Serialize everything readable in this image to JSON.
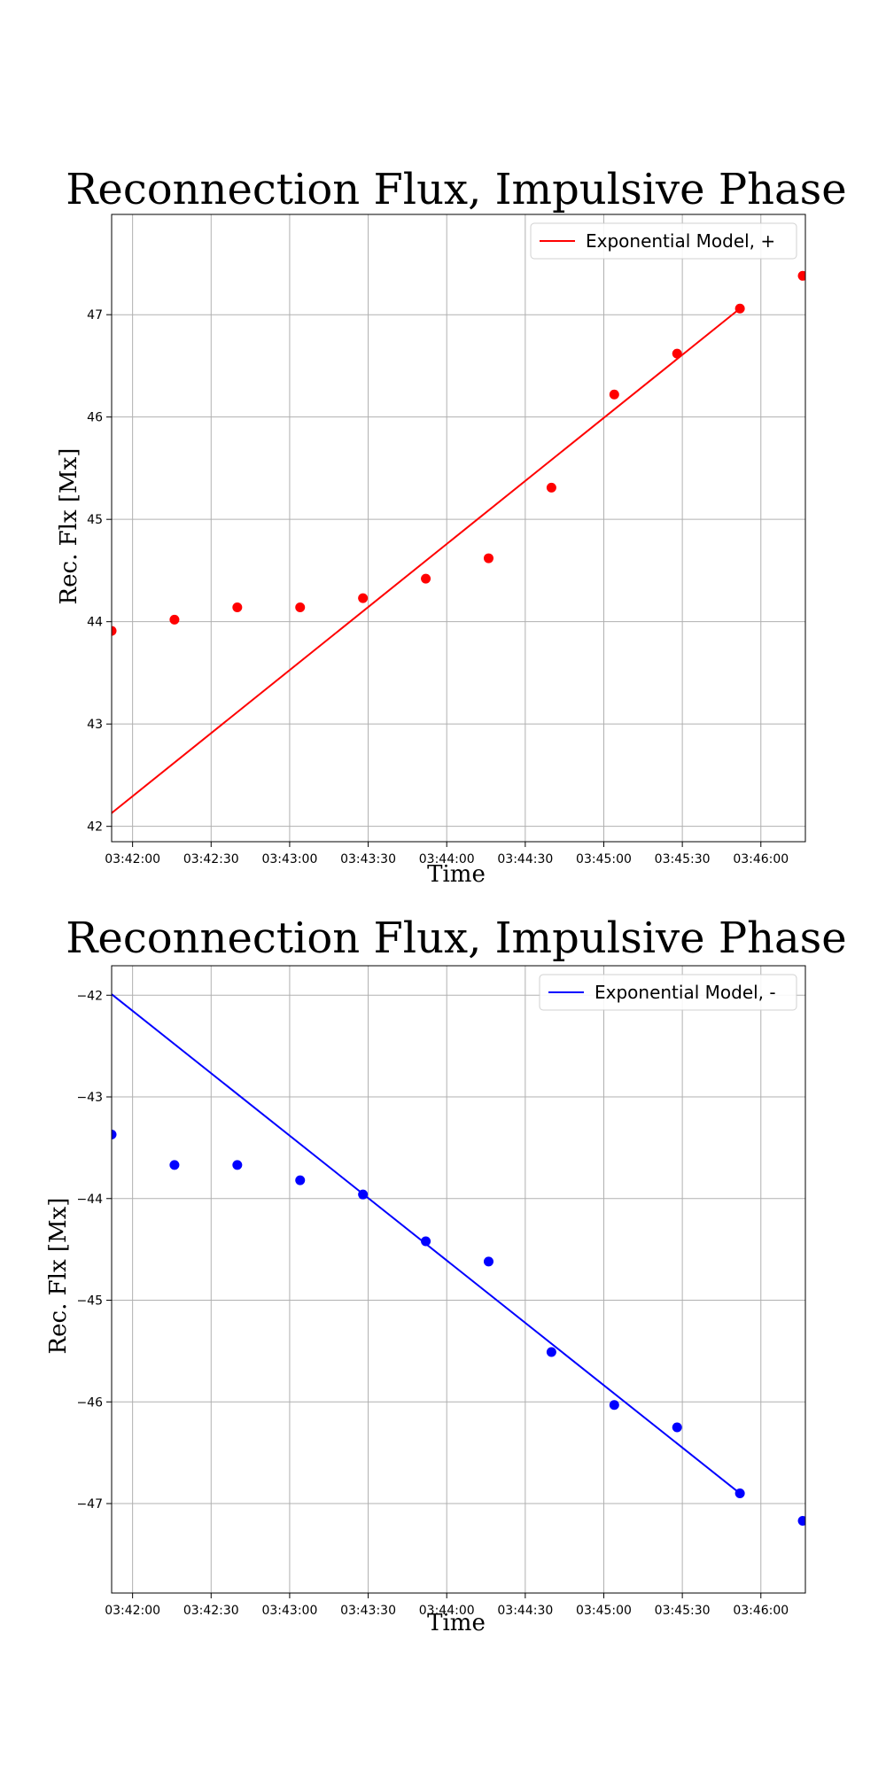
{
  "chart_data": [
    {
      "type": "scatter",
      "title": "Reconnection Flux, Impulsive Phase",
      "xlabel": "Time",
      "ylabel": "Rec. Flx [Mx]",
      "grid": true,
      "legend_position": "top-right",
      "xlim": [
        "03:41:52",
        "03:46:17"
      ],
      "ylim": [
        41.85,
        47.98
      ],
      "x_ticks": [
        "03:42:00",
        "03:42:30",
        "03:43:00",
        "03:43:30",
        "03:44:00",
        "03:44:30",
        "03:45:00",
        "03:45:30",
        "03:46:00"
      ],
      "y_ticks": [
        "42",
        "43",
        "44",
        "45",
        "46",
        "47"
      ],
      "y_tick_values": [
        42,
        43,
        44,
        45,
        46,
        47
      ],
      "color": "#ff0000",
      "points": {
        "x": [
          "03:41:52",
          "03:42:16",
          "03:42:40",
          "03:43:04",
          "03:43:28",
          "03:43:52",
          "03:44:16",
          "03:44:40",
          "03:45:04",
          "03:45:28",
          "03:45:52",
          "03:46:16"
        ],
        "y": [
          43.91,
          44.02,
          44.14,
          44.14,
          44.23,
          44.42,
          44.62,
          45.31,
          46.22,
          46.62,
          47.06,
          47.38
        ]
      },
      "series": [
        {
          "name": "Exponential Model, +",
          "type": "line",
          "x": [
            "03:41:52",
            "03:45:52"
          ],
          "y": [
            42.13,
            47.06
          ]
        }
      ]
    },
    {
      "type": "scatter",
      "title": "Reconnection Flux, Impulsive Phase",
      "xlabel": "Time",
      "ylabel": "Rec. Flx [Mx]",
      "grid": true,
      "legend_position": "top-right",
      "xlim": [
        "03:41:52",
        "03:46:17"
      ],
      "ylim": [
        -47.88,
        -41.71
      ],
      "x_ticks": [
        "03:42:00",
        "03:42:30",
        "03:43:00",
        "03:43:30",
        "03:44:00",
        "03:44:30",
        "03:45:00",
        "03:45:30",
        "03:46:00"
      ],
      "y_ticks": [
        "−42",
        "−43",
        "−44",
        "−45",
        "−46",
        "−47"
      ],
      "y_tick_values": [
        -42,
        -43,
        -44,
        -45,
        -46,
        -47
      ],
      "color": "#0000ff",
      "points": {
        "x": [
          "03:41:52",
          "03:42:16",
          "03:42:40",
          "03:43:04",
          "03:43:28",
          "03:43:52",
          "03:44:16",
          "03:44:40",
          "03:45:04",
          "03:45:28",
          "03:45:52",
          "03:46:16"
        ],
        "y": [
          -43.37,
          -43.67,
          -43.67,
          -43.82,
          -43.96,
          -44.42,
          -44.62,
          -45.51,
          -46.03,
          -46.25,
          -46.9,
          -47.17
        ]
      },
      "series": [
        {
          "name": "Exponential Model, -",
          "type": "line",
          "x": [
            "03:41:52",
            "03:45:52"
          ],
          "y": [
            -41.99,
            -46.9
          ]
        }
      ]
    }
  ]
}
